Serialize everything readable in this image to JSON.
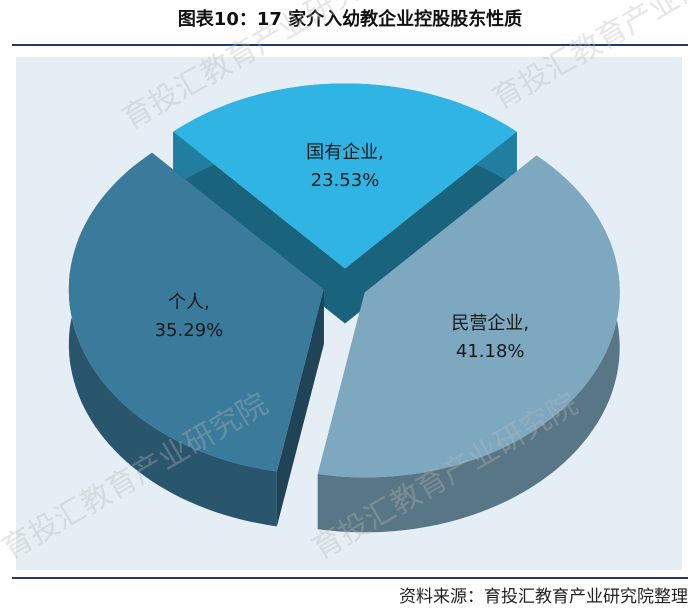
{
  "chart_data": {
    "type": "pie",
    "title": "图表10：17 家介入幼教企业控股股东性质",
    "values": [
      23.53,
      41.18,
      35.29
    ],
    "value_labels": [
      "国有企业, 23.53%",
      "民营企业, 41.18%",
      "个人, 35.29%"
    ],
    "colors": [
      "#2fb4e4",
      "#7ea8c0",
      "#3a7a9b"
    ],
    "source": "资料来源：育投汇教育产业研究院整理",
    "watermark": "育投汇教育产业研究院"
  }
}
